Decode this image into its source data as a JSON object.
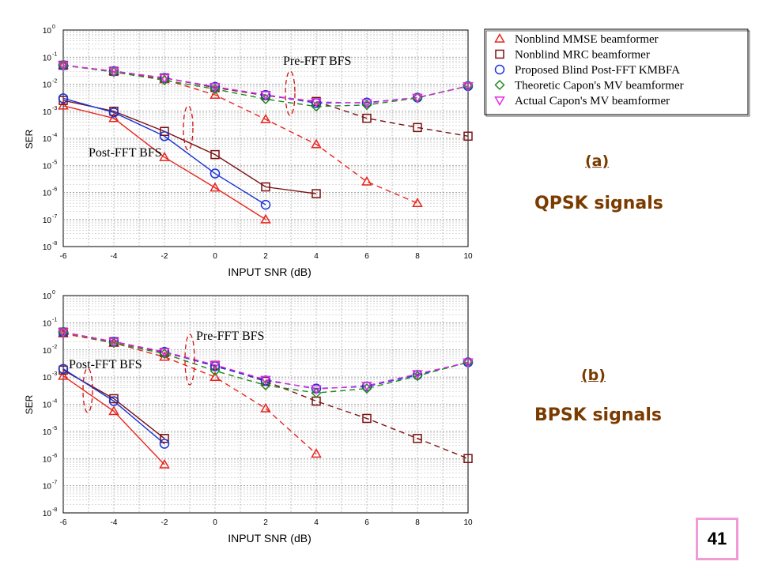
{
  "chart_data": [
    {
      "type": "line",
      "panel_label": "(a)",
      "caption": "QPSK signals",
      "xlabel": "INPUT SNR (dB)",
      "ylabel": "SER",
      "xlim": [
        -6,
        10
      ],
      "ylim_exp": [
        -8,
        0
      ],
      "yscale": "log",
      "xticks": [
        "-6",
        "-4",
        "-2",
        "0",
        "2",
        "4",
        "6",
        "8",
        "10"
      ],
      "grid": true,
      "legend_position": "top-right",
      "annotations": [
        "Pre-FFT BFS",
        "Post-FFT BFS"
      ],
      "legend": [
        "Nonblind MMSE beamformer",
        "Nonblind MRC beamformer",
        "Proposed Blind Post-FFT KMBFA",
        "Theoretic Capon's MV beamformer",
        "Actual Capon's MV beamformer"
      ],
      "series": [
        {
          "group": "pre",
          "marker": "triangle",
          "color": "#e8251f",
          "dash": true,
          "x": [
            -6,
            -4,
            -2,
            0,
            2,
            4,
            6,
            8
          ],
          "y": [
            0.05,
            0.03,
            0.015,
            0.004,
            0.0005,
            6e-05,
            2.5e-06,
            4e-07
          ]
        },
        {
          "group": "pre",
          "marker": "square",
          "color": "#7a1010",
          "dash": true,
          "x": [
            -6,
            -4,
            -2,
            0,
            2,
            4,
            6,
            8,
            10
          ],
          "y": [
            0.05,
            0.03,
            0.017,
            0.0075,
            0.0038,
            0.0023,
            0.00055,
            0.00025,
            0.00012
          ]
        },
        {
          "group": "pre",
          "marker": "circle",
          "color": "#1a33d6",
          "dash": true,
          "x": [
            -6,
            -4,
            -2,
            0,
            2,
            4,
            6,
            8,
            10
          ],
          "y": [
            0.05,
            0.03,
            0.017,
            0.008,
            0.004,
            0.002,
            0.0021,
            0.0032,
            0.0085
          ]
        },
        {
          "group": "pre",
          "marker": "diamond",
          "color": "#1e8a1e",
          "dash": true,
          "x": [
            -6,
            -4,
            -2,
            0,
            2,
            4,
            6,
            8,
            10
          ],
          "y": [
            0.05,
            0.028,
            0.014,
            0.0066,
            0.0028,
            0.0015,
            0.0017,
            0.0031,
            0.0085
          ]
        },
        {
          "group": "pre",
          "marker": "invtriangle",
          "color": "#e02be0",
          "dash": true,
          "x": [
            -6,
            -4,
            -2,
            0,
            2,
            4,
            6,
            8,
            10
          ],
          "y": [
            0.05,
            0.03,
            0.017,
            0.008,
            0.004,
            0.0022,
            0.002,
            0.0032,
            0.0085
          ]
        },
        {
          "group": "post",
          "marker": "triangle",
          "color": "#e8251f",
          "dash": false,
          "x": [
            -6,
            -4,
            -2,
            0,
            2
          ],
          "y": [
            0.0016,
            0.00055,
            2e-05,
            1.5e-06,
            1e-07
          ]
        },
        {
          "group": "post",
          "marker": "square",
          "color": "#7a1010",
          "dash": false,
          "x": [
            -6,
            -4,
            -2,
            0,
            2,
            4
          ],
          "y": [
            0.0025,
            0.001,
            0.00018,
            2.5e-05,
            1.6e-06,
            9e-07
          ]
        },
        {
          "group": "post",
          "marker": "circle",
          "color": "#1a33d6",
          "dash": false,
          "x": [
            -6,
            -4,
            -2,
            0,
            2
          ],
          "y": [
            0.003,
            0.0009,
            0.00012,
            5e-06,
            3.5e-07
          ]
        }
      ]
    },
    {
      "type": "line",
      "panel_label": "(b)",
      "caption": "BPSK signals",
      "xlabel": "INPUT SNR (dB)",
      "ylabel": "SER",
      "xlim": [
        -6,
        10
      ],
      "ylim_exp": [
        -8,
        0
      ],
      "yscale": "log",
      "xticks": [
        "-6",
        "-4",
        "-2",
        "0",
        "2",
        "4",
        "6",
        "8",
        "10"
      ],
      "grid": true,
      "annotations": [
        "Pre-FFT BFS",
        "Post-FFT BFS"
      ],
      "series": [
        {
          "group": "pre",
          "marker": "triangle",
          "color": "#e8251f",
          "dash": true,
          "x": [
            -6,
            -4,
            -2,
            0,
            2,
            4
          ],
          "y": [
            0.04,
            0.018,
            0.0055,
            0.001,
            7e-05,
            1.5e-06
          ]
        },
        {
          "group": "pre",
          "marker": "square",
          "color": "#7a1010",
          "dash": true,
          "x": [
            -6,
            -4,
            -2,
            0,
            2,
            4,
            6,
            8,
            10
          ],
          "y": [
            0.045,
            0.02,
            0.008,
            0.0027,
            0.0007,
            0.00013,
            3e-05,
            5.5e-06,
            1e-06
          ]
        },
        {
          "group": "pre",
          "marker": "circle",
          "color": "#1a33d6",
          "dash": true,
          "x": [
            -6,
            -4,
            -2,
            0,
            2,
            4,
            6,
            8,
            10
          ],
          "y": [
            0.045,
            0.02,
            0.0085,
            0.0025,
            0.00075,
            0.00038,
            0.00045,
            0.0012,
            0.0035
          ]
        },
        {
          "group": "pre",
          "marker": "diamond",
          "color": "#1e8a1e",
          "dash": true,
          "x": [
            -6,
            -4,
            -2,
            0,
            2,
            4,
            6,
            8,
            10
          ],
          "y": [
            0.045,
            0.018,
            0.0072,
            0.0017,
            0.0005,
            0.00026,
            0.00038,
            0.0011,
            0.0035
          ]
        },
        {
          "group": "pre",
          "marker": "invtriangle",
          "color": "#e02be0",
          "dash": true,
          "x": [
            -6,
            -4,
            -2,
            0,
            2,
            4,
            6,
            8,
            10
          ],
          "y": [
            0.045,
            0.02,
            0.0085,
            0.0028,
            0.0008,
            0.00036,
            0.00048,
            0.0013,
            0.0035
          ]
        },
        {
          "group": "post",
          "marker": "triangle",
          "color": "#e8251f",
          "dash": false,
          "x": [
            -6,
            -4,
            -2
          ],
          "y": [
            0.0011,
            5.5e-05,
            6e-07
          ]
        },
        {
          "group": "post",
          "marker": "square",
          "color": "#7a1010",
          "dash": false,
          "x": [
            -6,
            -4,
            -2
          ],
          "y": [
            0.0018,
            0.00016,
            5.5e-06
          ]
        },
        {
          "group": "post",
          "marker": "circle",
          "color": "#1a33d6",
          "dash": false,
          "x": [
            -6,
            -4,
            -2
          ],
          "y": [
            0.002,
            0.00013,
            3.5e-06
          ]
        }
      ]
    }
  ],
  "page_number": "41"
}
